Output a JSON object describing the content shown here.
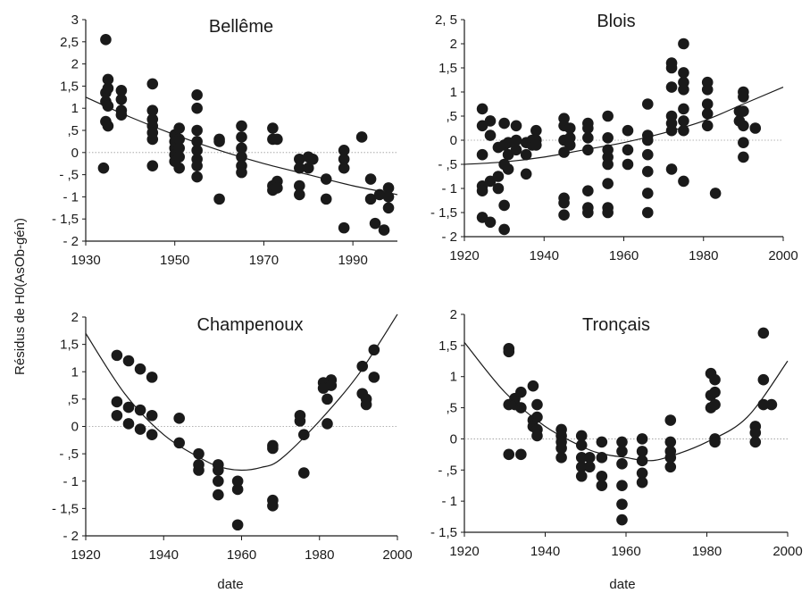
{
  "ylabel": "Résidus de H0(AsOb-gén)",
  "xlabel": "date",
  "style": {
    "point_color": "#1a1a1a",
    "line_color": "#1a1a1a",
    "zero_line_color": "#9a9a9a"
  },
  "chart_data": [
    {
      "type": "scatter",
      "title": "Bellême",
      "xlim": [
        1930,
        2000
      ],
      "ylim": [
        -2,
        3
      ],
      "xticks": [
        1930,
        1950,
        1970,
        1990
      ],
      "yticks": [
        -2,
        -1.5,
        -1,
        -0.5,
        0,
        0.5,
        1,
        1.5,
        2,
        2.5,
        3
      ],
      "ytick_labels": [
        "- 2",
        "- 1,5",
        "- 1",
        "- ,5",
        "0",
        ",5",
        "1",
        "1,5",
        "2",
        "2,5",
        "3"
      ],
      "zero_line": true,
      "trend": {
        "x": [
          1930,
          1940,
          1950,
          1960,
          1970,
          1980,
          1990,
          2000
        ],
        "y": [
          1.25,
          0.8,
          0.4,
          0.05,
          -0.25,
          -0.5,
          -0.75,
          -0.95
        ]
      },
      "points": [
        [
          1934,
          -0.35
        ],
        [
          1934.5,
          2.55
        ],
        [
          1935,
          1.65
        ],
        [
          1934.5,
          1.35
        ],
        [
          1934.5,
          1.15
        ],
        [
          1935,
          1.05
        ],
        [
          1934.5,
          0.7
        ],
        [
          1935,
          0.6
        ],
        [
          1935,
          1.45
        ],
        [
          1938,
          1.4
        ],
        [
          1938,
          1.2
        ],
        [
          1938,
          0.95
        ],
        [
          1938,
          0.85
        ],
        [
          1945,
          1.55
        ],
        [
          1945,
          0.95
        ],
        [
          1945,
          0.75
        ],
        [
          1945,
          0.6
        ],
        [
          1945,
          0.45
        ],
        [
          1945,
          0.3
        ],
        [
          1945,
          -0.3
        ],
        [
          1950,
          0.4
        ],
        [
          1950,
          0.25
        ],
        [
          1950,
          0.1
        ],
        [
          1950,
          -0.05
        ],
        [
          1950,
          -0.2
        ],
        [
          1951,
          0.55
        ],
        [
          1951,
          0.3
        ],
        [
          1951,
          0.1
        ],
        [
          1951,
          -0.1
        ],
        [
          1951,
          -0.35
        ],
        [
          1955,
          1.3
        ],
        [
          1955,
          1.0
        ],
        [
          1955,
          0.5
        ],
        [
          1955,
          0.25
        ],
        [
          1955,
          0.05
        ],
        [
          1955,
          -0.15
        ],
        [
          1955,
          -0.3
        ],
        [
          1955,
          -0.55
        ],
        [
          1960,
          0.3
        ],
        [
          1960,
          0.25
        ],
        [
          1960,
          -1.05
        ],
        [
          1965,
          0.6
        ],
        [
          1965,
          0.35
        ],
        [
          1965,
          0.1
        ],
        [
          1965,
          -0.1
        ],
        [
          1965,
          -0.3
        ],
        [
          1965,
          -0.45
        ],
        [
          1972,
          0.55
        ],
        [
          1972,
          0.3
        ],
        [
          1973,
          0.3
        ],
        [
          1972,
          -0.75
        ],
        [
          1972,
          -0.85
        ],
        [
          1973,
          -0.65
        ],
        [
          1973,
          -0.8
        ],
        [
          1978,
          -0.15
        ],
        [
          1978,
          -0.35
        ],
        [
          1978,
          -0.75
        ],
        [
          1978,
          -0.95
        ],
        [
          1980,
          -0.1
        ],
        [
          1980,
          -0.35
        ],
        [
          1981,
          -0.15
        ],
        [
          1984,
          -0.6
        ],
        [
          1984,
          -1.05
        ],
        [
          1988,
          0.05
        ],
        [
          1988,
          -0.15
        ],
        [
          1988,
          -0.35
        ],
        [
          1988,
          -1.7
        ],
        [
          1992,
          0.35
        ],
        [
          1994,
          -0.6
        ],
        [
          1994,
          -1.05
        ],
        [
          1995,
          -1.6
        ],
        [
          1996,
          -0.95
        ],
        [
          1997,
          -1.75
        ],
        [
          1998,
          -0.8
        ],
        [
          1998,
          -1.0
        ],
        [
          1998,
          -1.25
        ]
      ]
    },
    {
      "type": "scatter",
      "title": "Blois",
      "xlim": [
        1920,
        2000
      ],
      "ylim": [
        -2,
        2.5
      ],
      "xticks": [
        1920,
        1940,
        1960,
        1980,
        2000
      ],
      "yticks": [
        -2,
        -1.5,
        -1,
        -0.5,
        0,
        0.5,
        1,
        1.5,
        2,
        2.5
      ],
      "ytick_labels": [
        "- 2",
        "- 1,5",
        "- 1",
        "- ,5",
        "0",
        ",5",
        "1",
        "1,5",
        "2",
        "2, 5"
      ],
      "zero_line": true,
      "trend": {
        "x": [
          1920,
          1930,
          1940,
          1950,
          1960,
          1970,
          1980,
          1990,
          2000
        ],
        "y": [
          -0.5,
          -0.45,
          -0.35,
          -0.2,
          -0.05,
          0.15,
          0.4,
          0.75,
          1.1
        ]
      },
      "points": [
        [
          1924.5,
          0.65
        ],
        [
          1924.5,
          0.3
        ],
        [
          1924.5,
          -0.3
        ],
        [
          1924.5,
          -0.95
        ],
        [
          1924.5,
          -1.05
        ],
        [
          1924.5,
          -1.6
        ],
        [
          1926.5,
          0.4
        ],
        [
          1926.5,
          0.1
        ],
        [
          1926.5,
          -0.85
        ],
        [
          1926.5,
          -1.7
        ],
        [
          1928.5,
          -0.15
        ],
        [
          1928.5,
          -0.75
        ],
        [
          1928.5,
          -1.0
        ],
        [
          1930,
          0.35
        ],
        [
          1930,
          -0.1
        ],
        [
          1930,
          -0.5
        ],
        [
          1930,
          -1.35
        ],
        [
          1930,
          -1.85
        ],
        [
          1931,
          -0.05
        ],
        [
          1931,
          -0.3
        ],
        [
          1931,
          -0.6
        ],
        [
          1933,
          0.3
        ],
        [
          1933,
          0.0
        ],
        [
          1933,
          -0.2
        ],
        [
          1935.5,
          -0.05
        ],
        [
          1935.5,
          -0.3
        ],
        [
          1935.5,
          -0.7
        ],
        [
          1937,
          0.0
        ],
        [
          1937,
          -0.1
        ],
        [
          1938,
          0.2
        ],
        [
          1938,
          0.0
        ],
        [
          1938,
          -0.1
        ],
        [
          1945,
          0.45
        ],
        [
          1945,
          0.3
        ],
        [
          1945,
          0.0
        ],
        [
          1945,
          -0.25
        ],
        [
          1945,
          -1.2
        ],
        [
          1945,
          -1.3
        ],
        [
          1945,
          -1.55
        ],
        [
          1946.5,
          0.25
        ],
        [
          1946.5,
          0.05
        ],
        [
          1946.5,
          -0.1
        ],
        [
          1951,
          0.35
        ],
        [
          1951,
          0.25
        ],
        [
          1951,
          0.05
        ],
        [
          1951,
          -0.2
        ],
        [
          1951,
          -1.05
        ],
        [
          1951,
          -1.4
        ],
        [
          1951,
          -1.5
        ],
        [
          1956,
          0.5
        ],
        [
          1956,
          0.05
        ],
        [
          1956,
          -0.2
        ],
        [
          1956,
          -0.35
        ],
        [
          1956,
          -0.5
        ],
        [
          1956,
          -0.9
        ],
        [
          1956,
          -1.4
        ],
        [
          1956,
          -1.5
        ],
        [
          1961,
          0.2
        ],
        [
          1961,
          -0.2
        ],
        [
          1961,
          -0.5
        ],
        [
          1966,
          0.75
        ],
        [
          1966,
          0.1
        ],
        [
          1966,
          0.0
        ],
        [
          1966,
          -0.3
        ],
        [
          1966,
          -0.65
        ],
        [
          1966,
          -1.1
        ],
        [
          1966,
          -1.5
        ],
        [
          1972,
          1.6
        ],
        [
          1972,
          1.5
        ],
        [
          1972,
          1.1
        ],
        [
          1972,
          0.5
        ],
        [
          1972,
          0.35
        ],
        [
          1972,
          0.2
        ],
        [
          1972,
          -0.6
        ],
        [
          1975,
          2.0
        ],
        [
          1975,
          1.4
        ],
        [
          1975,
          1.2
        ],
        [
          1975,
          1.05
        ],
        [
          1975,
          0.65
        ],
        [
          1975,
          0.4
        ],
        [
          1975,
          0.2
        ],
        [
          1975,
          -0.85
        ],
        [
          1981,
          1.2
        ],
        [
          1981,
          1.05
        ],
        [
          1981,
          0.75
        ],
        [
          1981,
          0.55
        ],
        [
          1981,
          0.3
        ],
        [
          1983,
          -1.1
        ],
        [
          1989,
          0.6
        ],
        [
          1989,
          0.4
        ],
        [
          1990,
          1.0
        ],
        [
          1990,
          0.9
        ],
        [
          1990,
          0.6
        ],
        [
          1990,
          0.3
        ],
        [
          1990,
          -0.05
        ],
        [
          1990,
          -0.35
        ],
        [
          1993,
          0.25
        ]
      ]
    },
    {
      "type": "scatter",
      "title": "Champenoux",
      "xlim": [
        1920,
        2000
      ],
      "ylim": [
        -2,
        2
      ],
      "xticks": [
        1920,
        1940,
        1960,
        1980,
        2000
      ],
      "yticks": [
        -2,
        -1.5,
        -1,
        -0.5,
        0,
        0.5,
        1,
        1.5,
        2
      ],
      "ytick_labels": [
        "- 2",
        "- 1,5",
        "- 1",
        "- ,5",
        "0",
        ",5",
        "1",
        "1,5",
        "2"
      ],
      "zero_line": true,
      "trend": {
        "x": [
          1920,
          1930,
          1940,
          1950,
          1955,
          1960,
          1965,
          1970,
          1980,
          1990,
          2000
        ],
        "y": [
          1.7,
          0.6,
          -0.15,
          -0.6,
          -0.75,
          -0.8,
          -0.75,
          -0.6,
          0.1,
          0.95,
          2.05
        ]
      },
      "points": [
        [
          1928,
          1.3
        ],
        [
          1928,
          0.45
        ],
        [
          1928,
          0.2
        ],
        [
          1931,
          1.2
        ],
        [
          1931,
          0.35
        ],
        [
          1931,
          0.05
        ],
        [
          1934,
          1.05
        ],
        [
          1934,
          0.3
        ],
        [
          1934,
          -0.05
        ],
        [
          1937,
          0.9
        ],
        [
          1937,
          0.2
        ],
        [
          1937,
          -0.15
        ],
        [
          1944,
          0.15
        ],
        [
          1944,
          -0.3
        ],
        [
          1949,
          -0.5
        ],
        [
          1949,
          -0.7
        ],
        [
          1949,
          -0.8
        ],
        [
          1954,
          -0.7
        ],
        [
          1954,
          -0.8
        ],
        [
          1954,
          -1.0
        ],
        [
          1954,
          -1.25
        ],
        [
          1959,
          -1.0
        ],
        [
          1959,
          -1.15
        ],
        [
          1959,
          -1.8
        ],
        [
          1968,
          -0.35
        ],
        [
          1968,
          -0.4
        ],
        [
          1968,
          -1.35
        ],
        [
          1968,
          -1.45
        ],
        [
          1975,
          0.2
        ],
        [
          1975,
          0.1
        ],
        [
          1976,
          -0.15
        ],
        [
          1976,
          -0.85
        ],
        [
          1981,
          0.8
        ],
        [
          1981,
          0.7
        ],
        [
          1982,
          0.5
        ],
        [
          1982,
          0.05
        ],
        [
          1983,
          0.85
        ],
        [
          1983,
          0.75
        ],
        [
          1991,
          1.1
        ],
        [
          1991,
          0.6
        ],
        [
          1992,
          0.5
        ],
        [
          1992,
          0.4
        ],
        [
          1994,
          1.4
        ],
        [
          1994,
          0.9
        ]
      ]
    },
    {
      "type": "scatter",
      "title": "Tronçais",
      "xlim": [
        1920,
        2000
      ],
      "ylim": [
        -1.5,
        2
      ],
      "xticks": [
        1920,
        1940,
        1960,
        1980,
        2000
      ],
      "yticks": [
        -1.5,
        -1,
        -0.5,
        0,
        0.5,
        1,
        1.5,
        2
      ],
      "ytick_labels": [
        "- 1,5",
        "- 1",
        "- ,5",
        "0",
        ",5",
        "1",
        "1,5",
        "2"
      ],
      "zero_line": true,
      "trend": {
        "x": [
          1920,
          1930,
          1940,
          1950,
          1955,
          1960,
          1965,
          1970,
          1980,
          1990,
          2000
        ],
        "y": [
          1.55,
          0.75,
          0.2,
          -0.15,
          -0.25,
          -0.3,
          -0.35,
          -0.3,
          -0.05,
          0.35,
          1.25
        ]
      },
      "points": [
        [
          1931,
          1.45
        ],
        [
          1931,
          1.4
        ],
        [
          1931,
          0.55
        ],
        [
          1931,
          -0.25
        ],
        [
          1932.5,
          0.65
        ],
        [
          1932.5,
          0.55
        ],
        [
          1934,
          0.75
        ],
        [
          1934,
          0.5
        ],
        [
          1934,
          -0.25
        ],
        [
          1937,
          0.85
        ],
        [
          1937,
          0.3
        ],
        [
          1937,
          0.2
        ],
        [
          1938,
          0.55
        ],
        [
          1938,
          0.35
        ],
        [
          1938,
          0.15
        ],
        [
          1938,
          0.05
        ],
        [
          1944,
          0.15
        ],
        [
          1944,
          0.05
        ],
        [
          1944,
          -0.05
        ],
        [
          1944,
          -0.15
        ],
        [
          1944,
          -0.3
        ],
        [
          1949,
          0.05
        ],
        [
          1949,
          -0.1
        ],
        [
          1949,
          -0.3
        ],
        [
          1949,
          -0.45
        ],
        [
          1949,
          -0.6
        ],
        [
          1951,
          -0.3
        ],
        [
          1951,
          -0.45
        ],
        [
          1954,
          -0.05
        ],
        [
          1954,
          -0.3
        ],
        [
          1954,
          -0.6
        ],
        [
          1954,
          -0.75
        ],
        [
          1959,
          -0.05
        ],
        [
          1959,
          -0.2
        ],
        [
          1959,
          -0.4
        ],
        [
          1959,
          -0.75
        ],
        [
          1959,
          -1.05
        ],
        [
          1959,
          -1.3
        ],
        [
          1964,
          0.0
        ],
        [
          1964,
          -0.2
        ],
        [
          1964,
          -0.35
        ],
        [
          1964,
          -0.55
        ],
        [
          1964,
          -0.7
        ],
        [
          1971,
          0.3
        ],
        [
          1971,
          -0.05
        ],
        [
          1971,
          -0.2
        ],
        [
          1971,
          -0.3
        ],
        [
          1971,
          -0.45
        ],
        [
          1981,
          1.05
        ],
        [
          1981,
          0.7
        ],
        [
          1981,
          0.5
        ],
        [
          1982,
          0.95
        ],
        [
          1982,
          0.75
        ],
        [
          1982,
          0.55
        ],
        [
          1982,
          0.0
        ],
        [
          1982,
          -0.05
        ],
        [
          1992,
          0.2
        ],
        [
          1992,
          0.1
        ],
        [
          1992,
          -0.05
        ],
        [
          1994,
          1.7
        ],
        [
          1994,
          0.95
        ],
        [
          1994,
          0.55
        ],
        [
          1996,
          0.55
        ]
      ]
    }
  ]
}
